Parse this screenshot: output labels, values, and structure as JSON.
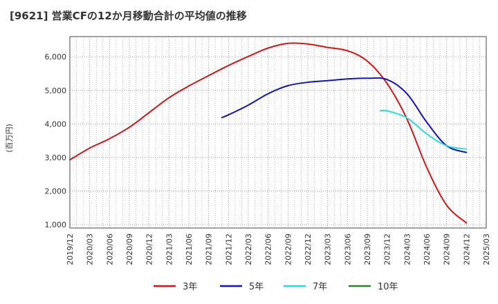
{
  "chart_data": {
    "type": "line",
    "title": "[9621]  営業CFの12か月移動合計の平均値の推移",
    "ylabel": "(百万円)",
    "ylim": [
      900,
      6600
    ],
    "yticks": [
      1000,
      2000,
      3000,
      4000,
      5000,
      6000
    ],
    "ytick_labels": [
      "1,000",
      "2,000",
      "3,000",
      "4,000",
      "5,000",
      "6,000"
    ],
    "xticks": [
      "2019/12",
      "2020/03",
      "2020/06",
      "2020/09",
      "2020/12",
      "2021/03",
      "2021/06",
      "2021/09",
      "2021/12",
      "2022/03",
      "2022/06",
      "2022/09",
      "2022/12",
      "2023/03",
      "2023/06",
      "2023/09",
      "2023/12",
      "2024/03",
      "2024/06",
      "2024/09",
      "2024/12",
      "2025/03"
    ],
    "grid": true,
    "legend_position": "bottom",
    "series": [
      {
        "name": "3年",
        "color": "#dd1111",
        "points": [
          [
            "2019/12",
            2930
          ],
          [
            "2020/03",
            3280
          ],
          [
            "2020/06",
            3560
          ],
          [
            "2020/09",
            3900
          ],
          [
            "2020/12",
            4340
          ],
          [
            "2021/03",
            4780
          ],
          [
            "2021/06",
            5130
          ],
          [
            "2021/09",
            5440
          ],
          [
            "2021/12",
            5740
          ],
          [
            "2022/03",
            6010
          ],
          [
            "2022/06",
            6260
          ],
          [
            "2022/09",
            6400
          ],
          [
            "2022/12",
            6380
          ],
          [
            "2023/03",
            6280
          ],
          [
            "2023/06",
            6180
          ],
          [
            "2023/09",
            5870
          ],
          [
            "2023/12",
            5200
          ],
          [
            "2024/03",
            4150
          ],
          [
            "2024/06",
            2700
          ],
          [
            "2024/09",
            1580
          ],
          [
            "2024/12",
            1050
          ]
        ]
      },
      {
        "name": "5年",
        "color": "#1111cc",
        "points": [
          [
            "2021/11",
            4190
          ],
          [
            "2021/12",
            4270
          ],
          [
            "2022/03",
            4560
          ],
          [
            "2022/06",
            4900
          ],
          [
            "2022/09",
            5140
          ],
          [
            "2022/12",
            5240
          ],
          [
            "2023/03",
            5290
          ],
          [
            "2023/06",
            5340
          ],
          [
            "2023/09",
            5360
          ],
          [
            "2023/12",
            5320
          ],
          [
            "2024/03",
            4900
          ],
          [
            "2024/06",
            4050
          ],
          [
            "2024/09",
            3350
          ],
          [
            "2024/12",
            3150
          ]
        ]
      },
      {
        "name": "7年",
        "color": "#22dddd",
        "points": [
          [
            "2023/11",
            4390
          ],
          [
            "2023/12",
            4390
          ],
          [
            "2024/03",
            4180
          ],
          [
            "2024/06",
            3700
          ],
          [
            "2024/09",
            3350
          ],
          [
            "2024/12",
            3250
          ]
        ]
      },
      {
        "name": "10年",
        "color": "#228822",
        "points": []
      }
    ]
  }
}
